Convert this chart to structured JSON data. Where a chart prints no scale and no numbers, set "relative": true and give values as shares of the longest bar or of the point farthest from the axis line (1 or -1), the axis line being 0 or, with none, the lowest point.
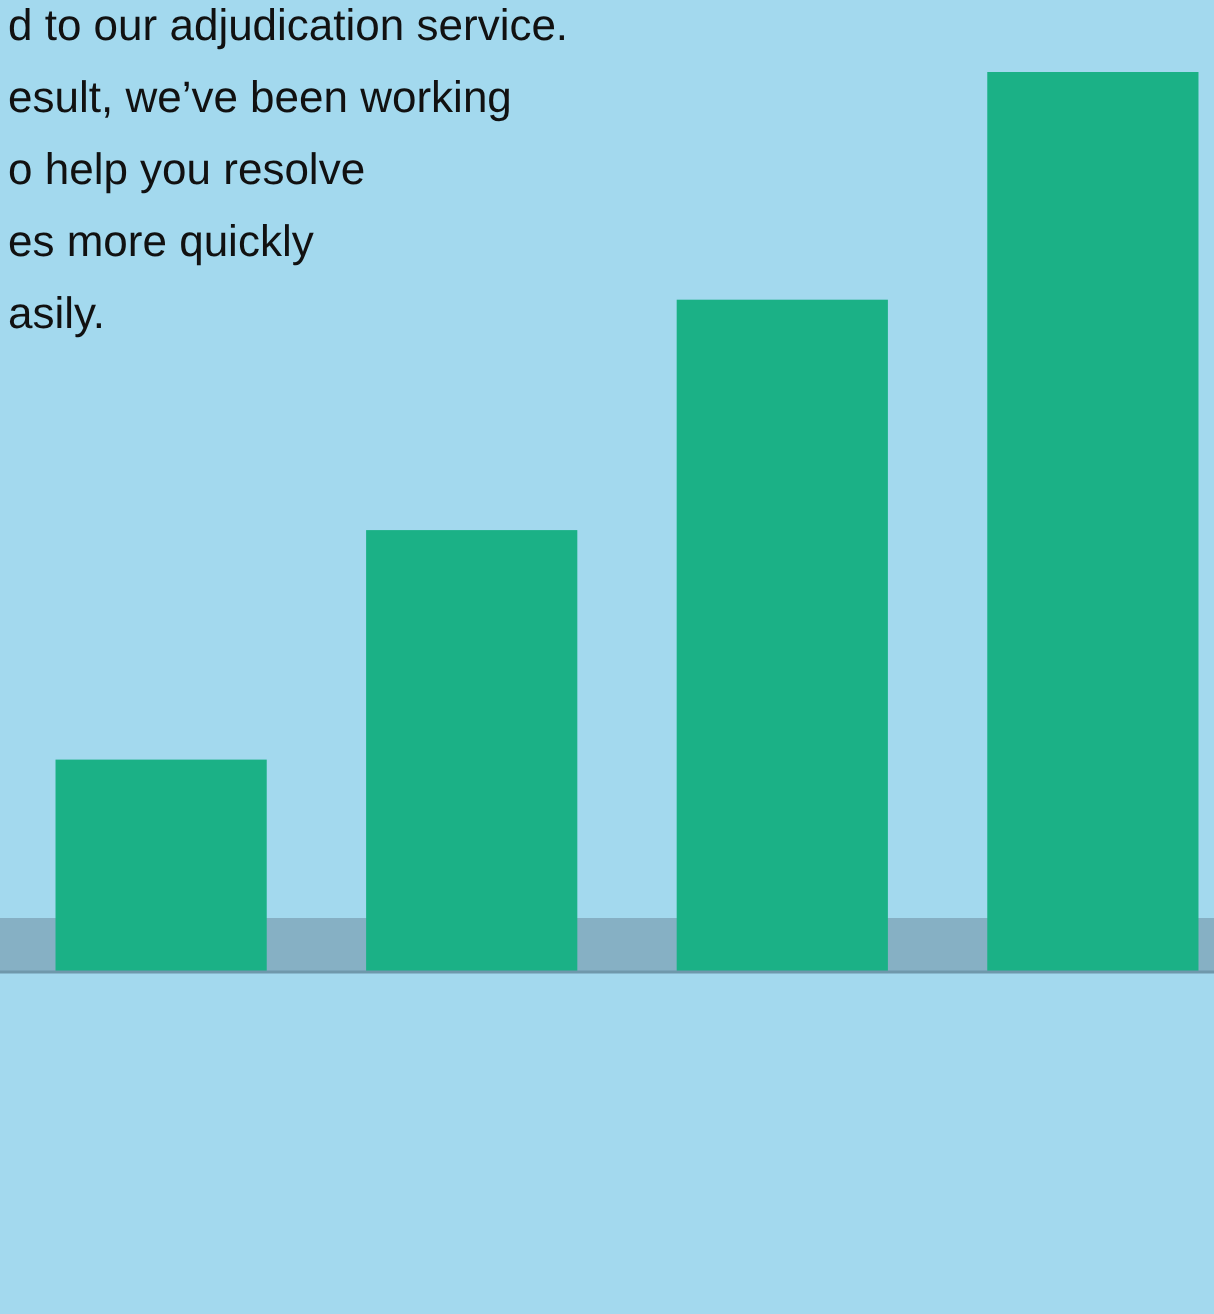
{
  "chart_data": {
    "type": "bar",
    "relative": true,
    "categories": [
      null,
      null,
      null,
      null
    ],
    "values": [
      0.236,
      0.491,
      0.747,
      1
    ],
    "color": "#1bb186",
    "annotations": [
      "d to our adjudication service.",
      "esult, we’ve been working",
      "o help you resolve",
      "es more quickly",
      "asily."
    ]
  }
}
